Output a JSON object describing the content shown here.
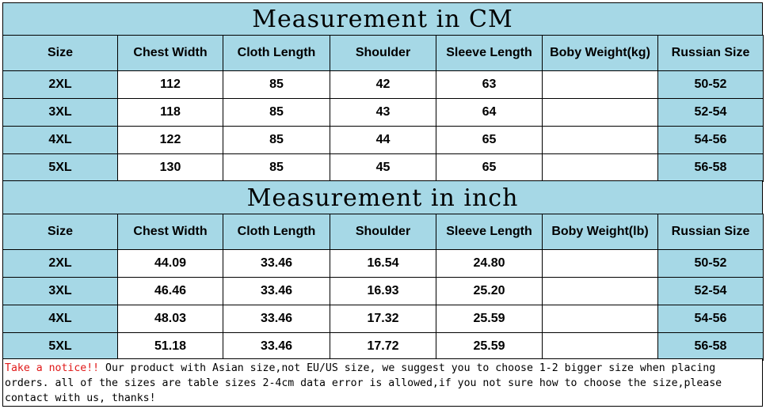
{
  "tables": [
    {
      "title": "Measurement in CM",
      "headers": [
        "Size",
        "Chest Width",
        "Cloth Length",
        "Shoulder",
        "Sleeve Length",
        "Boby Weight(kg)",
        "Russian Size"
      ],
      "rows": [
        [
          "2XL",
          "112",
          "85",
          "42",
          "63",
          "",
          "50-52"
        ],
        [
          "3XL",
          "118",
          "85",
          "43",
          "64",
          "",
          "52-54"
        ],
        [
          "4XL",
          "122",
          "85",
          "44",
          "65",
          "",
          "54-56"
        ],
        [
          "5XL",
          "130",
          "85",
          "45",
          "65",
          "",
          "56-58"
        ]
      ]
    },
    {
      "title": "Measurement in inch",
      "headers": [
        "Size",
        "Chest Width",
        "Cloth Length",
        "Shoulder",
        "Sleeve Length",
        "Boby Weight(lb)",
        "Russian Size"
      ],
      "rows": [
        [
          "2XL",
          "44.09",
          "33.46",
          "16.54",
          "24.80",
          "",
          "50-52"
        ],
        [
          "3XL",
          "46.46",
          "33.46",
          "16.93",
          "25.20",
          "",
          "52-54"
        ],
        [
          "4XL",
          "48.03",
          "33.46",
          "17.32",
          "25.59",
          "",
          "54-56"
        ],
        [
          "5XL",
          "51.18",
          "33.46",
          "17.72",
          "25.59",
          "",
          "56-58"
        ]
      ]
    }
  ],
  "notice": {
    "highlight": "Take a notice!!",
    "text": " Our product with Asian size,not EU/US size, we suggest you to choose 1-2 bigger size when placing orders. all of the sizes are table sizes 2-4cm data error is allowed,if you not sure how to choose the size,please contact with us, thanks!"
  },
  "colors": {
    "header_bg": "#a6d8e6",
    "notice_highlight": "#e01818"
  }
}
